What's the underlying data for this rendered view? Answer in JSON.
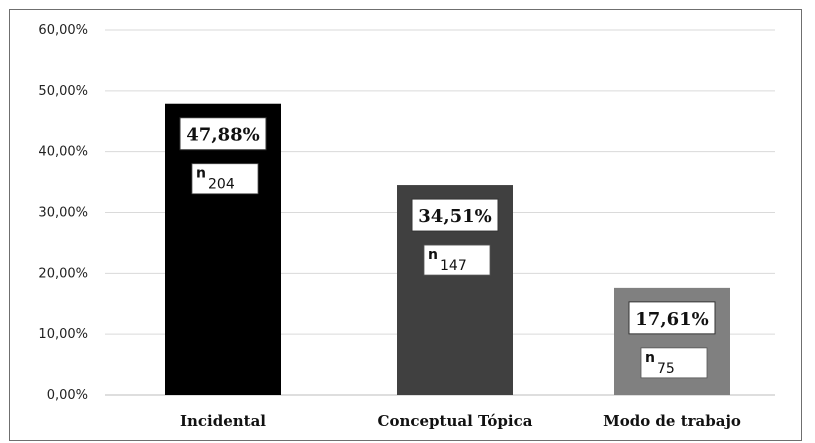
{
  "chart_data": {
    "type": "bar",
    "categories": [
      "Incidental",
      "Conceptual Tópica",
      "Modo de trabajo"
    ],
    "values": [
      47.88,
      34.51,
      17.61
    ],
    "value_labels": [
      "47,88%",
      "34,51%",
      "17,61%"
    ],
    "counts": [
      "204",
      "147",
      "75"
    ],
    "count_prefix": "n",
    "bar_colors": [
      "#000000",
      "#404040",
      "#808080"
    ],
    "ylim": [
      0,
      60
    ],
    "yticks": [
      0,
      10,
      20,
      30,
      40,
      50,
      60
    ],
    "ytick_labels": [
      "0,00%",
      "10,00%",
      "20,00%",
      "30,00%",
      "40,00%",
      "50,00%",
      "60,00%"
    ],
    "grid": true,
    "legend": "none"
  }
}
